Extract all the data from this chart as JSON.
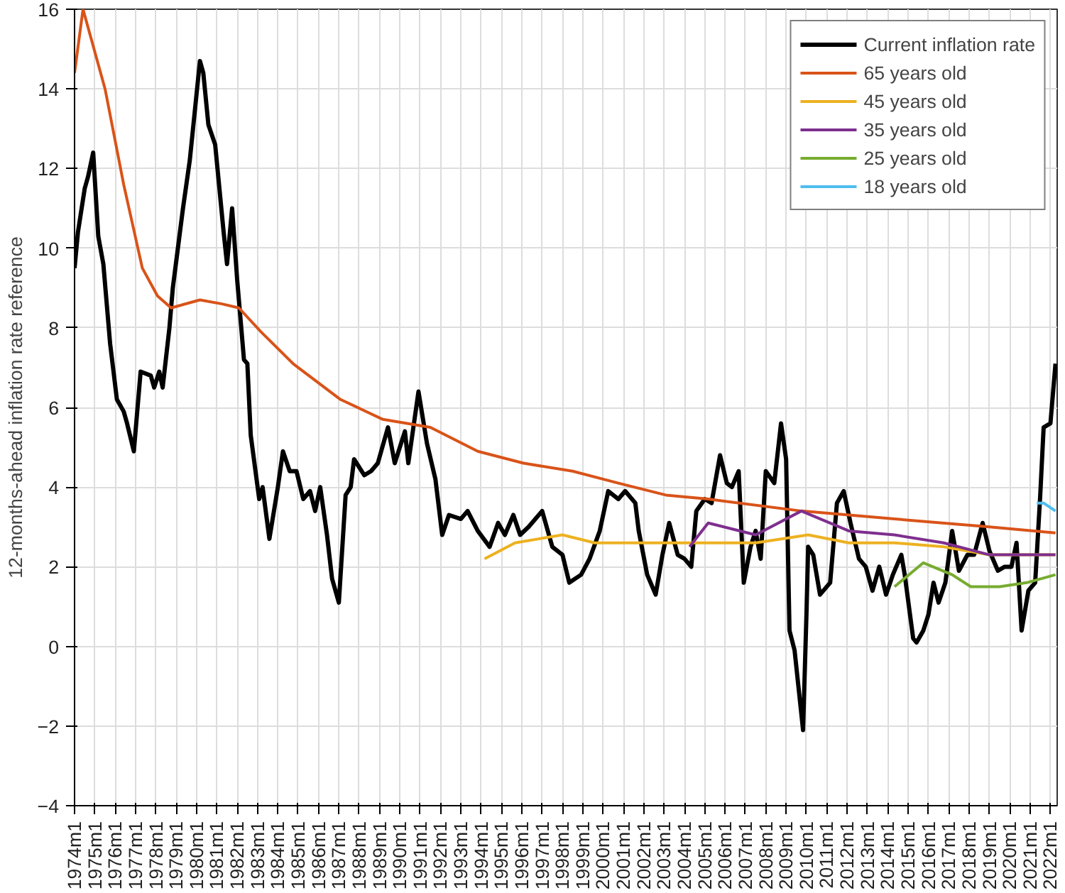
{
  "chart_data": {
    "type": "line",
    "ylabel": "12-months-ahead inflation rate reference",
    "xlim": [
      "1974-01",
      "2022-05"
    ],
    "ylim": [
      -4,
      16
    ],
    "yticks": [
      -4,
      -2,
      0,
      2,
      4,
      6,
      8,
      10,
      12,
      14,
      16
    ],
    "xticks": [
      {
        "value": "1974-01",
        "label": "1974m1"
      },
      {
        "value": "1975-01",
        "label": "1975m1"
      },
      {
        "value": "1976-01",
        "label": "1976m1"
      },
      {
        "value": "1977-01",
        "label": "1977m1"
      },
      {
        "value": "1978-01",
        "label": "1978m1"
      },
      {
        "value": "1979-01",
        "label": "1979m1"
      },
      {
        "value": "1980-01",
        "label": "1980m1"
      },
      {
        "value": "1981-01",
        "label": "1981m1"
      },
      {
        "value": "1982-01",
        "label": "1982m1"
      },
      {
        "value": "1983-01",
        "label": "1983m1"
      },
      {
        "value": "1984-01",
        "label": "1984m1"
      },
      {
        "value": "1985-01",
        "label": "1985m1"
      },
      {
        "value": "1986-01",
        "label": "1986m1"
      },
      {
        "value": "1987-01",
        "label": "1987m1"
      },
      {
        "value": "1988-01",
        "label": "1988m1"
      },
      {
        "value": "1989-01",
        "label": "1989m1"
      },
      {
        "value": "1990-01",
        "label": "1990m1"
      },
      {
        "value": "1991-01",
        "label": "1991m1"
      },
      {
        "value": "1992-01",
        "label": "1992m1"
      },
      {
        "value": "1993-01",
        "label": "1993m1"
      },
      {
        "value": "1994-01",
        "label": "1994m1"
      },
      {
        "value": "1995-01",
        "label": "1995m1"
      },
      {
        "value": "1996-01",
        "label": "1996m1"
      },
      {
        "value": "1997-01",
        "label": "1997m1"
      },
      {
        "value": "1998-01",
        "label": "1998m1"
      },
      {
        "value": "1999-01",
        "label": "1999m1"
      },
      {
        "value": "2000-01",
        "label": "2000m1"
      },
      {
        "value": "2001-01",
        "label": "2001m1"
      },
      {
        "value": "2002-01",
        "label": "2002m1"
      },
      {
        "value": "2003-01",
        "label": "2003m1"
      },
      {
        "value": "2004-01",
        "label": "2004m1"
      },
      {
        "value": "2005-01",
        "label": "2005m1"
      },
      {
        "value": "2006-01",
        "label": "2006m1"
      },
      {
        "value": "2007-01",
        "label": "2007m1"
      },
      {
        "value": "2008-01",
        "label": "2008m1"
      },
      {
        "value": "2009-01",
        "label": "2009m1"
      },
      {
        "value": "2010-01",
        "label": "2010m1"
      },
      {
        "value": "2011-01",
        "label": "2011m1"
      },
      {
        "value": "2012-01",
        "label": "2012m1"
      },
      {
        "value": "2013-01",
        "label": "2013m1"
      },
      {
        "value": "2014-01",
        "label": "2014m1"
      },
      {
        "value": "2015-01",
        "label": "2015m1"
      },
      {
        "value": "2016-01",
        "label": "2016m1"
      },
      {
        "value": "2017-01",
        "label": "2017m1"
      },
      {
        "value": "2018-01",
        "label": "2018m1"
      },
      {
        "value": "2019-01",
        "label": "2019m1"
      },
      {
        "value": "2020-01",
        "label": "2020m1"
      },
      {
        "value": "2021-01",
        "label": "2021m1"
      },
      {
        "value": "2022-01",
        "label": "2022m1"
      }
    ],
    "grid": true,
    "legend": "top right",
    "marker": "none",
    "line_style": "solid",
    "series": [
      {
        "name": "Current inflation rate",
        "color": "#000000",
        "x": [
          "1974-01",
          "1974-03",
          "1974-07",
          "1974-09",
          "1974-12",
          "1975-03",
          "1975-06",
          "1975-10",
          "1976-02",
          "1976-06",
          "1976-08",
          "1976-12",
          "1977-04",
          "1977-10",
          "1977-12",
          "1978-03",
          "1978-05",
          "1978-09",
          "1978-11",
          "1979-05",
          "1979-09",
          "1980-03",
          "1980-05",
          "1980-08",
          "1980-12",
          "1981-05",
          "1981-07",
          "1981-10",
          "1982-01",
          "1982-05",
          "1982-07",
          "1982-09",
          "1983-02",
          "1983-04",
          "1983-08",
          "1984-01",
          "1984-04",
          "1984-08",
          "1984-12",
          "1985-04",
          "1985-08",
          "1985-11",
          "1986-02",
          "1986-06",
          "1986-09",
          "1987-01",
          "1987-05",
          "1987-08",
          "1987-10",
          "1988-04",
          "1988-08",
          "1988-12",
          "1989-06",
          "1989-10",
          "1990-04",
          "1990-06",
          "1990-12",
          "1991-05",
          "1991-10",
          "1992-02",
          "1992-06",
          "1993-01",
          "1993-05",
          "1993-11",
          "1994-06",
          "1994-11",
          "1995-03",
          "1995-08",
          "1995-12",
          "1996-05",
          "1997-01",
          "1997-07",
          "1998-01",
          "1998-05",
          "1998-12",
          "1999-05",
          "1999-11",
          "2000-04",
          "2000-10",
          "2001-02",
          "2001-08",
          "2001-10",
          "2002-03",
          "2002-08",
          "2002-12",
          "2003-04",
          "2003-09",
          "2004-01",
          "2004-05",
          "2004-08",
          "2005-01",
          "2005-05",
          "2005-10",
          "2006-02",
          "2006-05",
          "2006-09",
          "2006-12",
          "2007-04",
          "2007-07",
          "2007-10",
          "2008-01",
          "2008-06",
          "2008-10",
          "2009-01",
          "2009-03",
          "2009-06",
          "2009-11",
          "2010-01",
          "2010-02",
          "2010-05",
          "2010-09",
          "2011-03",
          "2011-07",
          "2011-11",
          "2012-03",
          "2012-08",
          "2012-12",
          "2013-04",
          "2013-08",
          "2013-12",
          "2014-04",
          "2014-09",
          "2014-11",
          "2015-04",
          "2015-06",
          "2015-10",
          "2016-01",
          "2016-04",
          "2016-07",
          "2016-11",
          "2017-03",
          "2017-07",
          "2017-12",
          "2018-04",
          "2018-09",
          "2019-01",
          "2019-06",
          "2019-10",
          "2020-02",
          "2020-05",
          "2020-08",
          "2020-12",
          "2021-04",
          "2021-07",
          "2021-09",
          "2022-01",
          "2022-04"
        ],
        "values": [
          9.5,
          10.4,
          11.5,
          11.8,
          12.4,
          10.3,
          9.6,
          7.6,
          6.2,
          5.9,
          5.6,
          4.9,
          6.9,
          6.8,
          6.5,
          6.9,
          6.5,
          8.0,
          9.0,
          11.0,
          12.2,
          14.7,
          14.4,
          13.1,
          12.6,
          10.4,
          9.6,
          11.0,
          9.2,
          7.2,
          7.1,
          5.3,
          3.7,
          4.0,
          2.7,
          4.0,
          4.9,
          4.4,
          4.4,
          3.7,
          3.9,
          3.4,
          4.0,
          2.8,
          1.7,
          1.1,
          3.8,
          4.0,
          4.7,
          4.3,
          4.4,
          4.6,
          5.5,
          4.6,
          5.4,
          4.6,
          6.4,
          5.1,
          4.2,
          2.8,
          3.3,
          3.2,
          3.4,
          2.9,
          2.5,
          3.1,
          2.8,
          3.3,
          2.8,
          3.0,
          3.4,
          2.5,
          2.3,
          1.6,
          1.8,
          2.2,
          2.9,
          3.9,
          3.7,
          3.9,
          3.6,
          2.9,
          1.8,
          1.3,
          2.3,
          3.1,
          2.3,
          2.2,
          2.0,
          3.4,
          3.7,
          3.6,
          4.8,
          4.1,
          4.0,
          4.4,
          1.6,
          2.5,
          2.9,
          2.2,
          4.4,
          4.1,
          5.6,
          4.7,
          0.4,
          -0.1,
          -2.1,
          0.8,
          2.5,
          2.3,
          1.3,
          1.6,
          3.6,
          3.9,
          3.1,
          2.2,
          2.0,
          1.4,
          2.0,
          1.3,
          1.8,
          2.3,
          1.8,
          0.2,
          0.1,
          0.4,
          0.8,
          1.6,
          1.1,
          1.6,
          2.9,
          1.9,
          2.3,
          2.3,
          3.1,
          2.4,
          1.9,
          2.0,
          2.0,
          2.6,
          0.4,
          1.4,
          1.6,
          3.8,
          5.5,
          5.6,
          7.1
        ]
      },
      {
        "name": "65 years old",
        "color": "#d95319",
        "x": [
          "1974-01",
          "1974-06",
          "1975-07",
          "1976-06",
          "1977-05",
          "1978-02",
          "1978-10",
          "1980-03",
          "1981-04",
          "1982-02",
          "1983-03",
          "1984-10",
          "1987-02",
          "1989-03",
          "1991-07",
          "1993-11",
          "1996-02",
          "1998-07",
          "2000-10",
          "2003-02",
          "2005-03",
          "2009-10",
          "2014-05",
          "2019-01",
          "2022-04"
        ],
        "values": [
          14.4,
          16.0,
          14.0,
          11.6,
          9.5,
          8.8,
          8.5,
          8.7,
          8.6,
          8.5,
          7.9,
          7.1,
          6.2,
          5.7,
          5.5,
          4.9,
          4.6,
          4.4,
          4.1,
          3.8,
          3.7,
          3.4,
          3.2,
          3.0,
          2.85
        ]
      },
      {
        "name": "45 years old",
        "color": "#edb120",
        "x": [
          "1994-03",
          "1995-09",
          "1998-01",
          "1999-08",
          "2001-11",
          "2004-04",
          "2005-03",
          "2007-07",
          "2010-02",
          "2012-02",
          "2014-05",
          "2016-10",
          "2019-01",
          "2022-04"
        ],
        "values": [
          2.2,
          2.6,
          2.8,
          2.6,
          2.6,
          2.6,
          2.6,
          2.6,
          2.8,
          2.6,
          2.6,
          2.5,
          2.3,
          2.3
        ]
      },
      {
        "name": "35 years old",
        "color": "#7e2f8e",
        "x": [
          "2004-04",
          "2005-03",
          "2007-07",
          "2009-10",
          "2012-02",
          "2014-05",
          "2016-10",
          "2019-01",
          "2022-04"
        ],
        "values": [
          2.5,
          3.1,
          2.8,
          3.4,
          2.9,
          2.8,
          2.6,
          2.3,
          2.3
        ]
      },
      {
        "name": "25 years old",
        "color": "#77ac30",
        "x": [
          "2014-05",
          "2015-10",
          "2017-03",
          "2018-02",
          "2019-07",
          "2020-11",
          "2022-04"
        ],
        "values": [
          1.5,
          2.1,
          1.8,
          1.5,
          1.5,
          1.6,
          1.8
        ]
      },
      {
        "name": "18 years old",
        "color": "#4dbeee",
        "x": [
          "2021-05",
          "2021-09",
          "2022-04"
        ],
        "values": [
          3.6,
          3.6,
          3.4
        ]
      }
    ]
  }
}
